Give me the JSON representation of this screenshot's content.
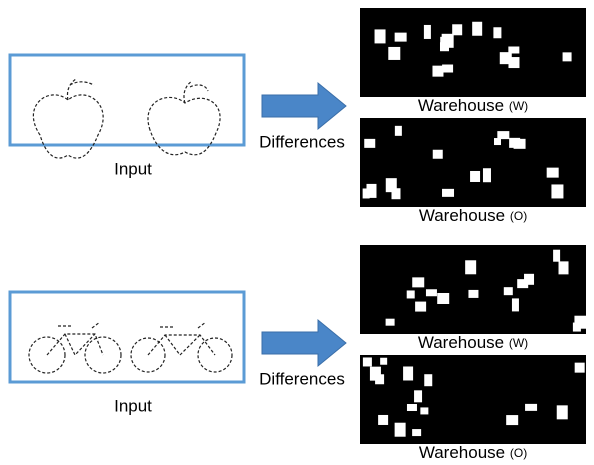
{
  "rows": [
    {
      "input_label": "Input",
      "arrow_label": "Differences",
      "outputs": [
        {
          "label": "Warehouse",
          "tag": "(W)"
        },
        {
          "label": "Warehouse",
          "tag": "(O)"
        }
      ]
    },
    {
      "input_label": "Input",
      "arrow_label": "Differences",
      "outputs": [
        {
          "label": "Warehouse",
          "tag": "(W)"
        },
        {
          "label": "Warehouse",
          "tag": "(O)"
        }
      ]
    }
  ]
}
